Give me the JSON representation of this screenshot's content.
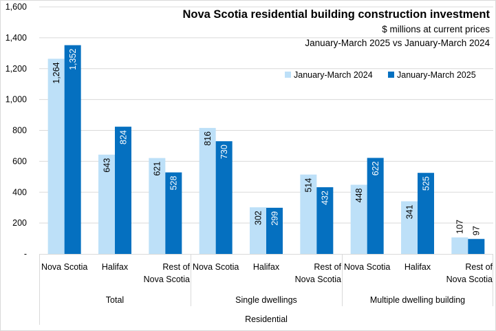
{
  "chart_data": {
    "type": "bar",
    "title": "Nova Scotia residential building construction investment",
    "subtitle": "$ millions at current prices",
    "subtitle2": "January-March 2025 vs January-March 2024",
    "xlabel": "",
    "ylabel": "",
    "ylim": [
      0,
      1600
    ],
    "yticks": [
      0,
      200,
      400,
      600,
      800,
      1000,
      1200,
      1400,
      1600
    ],
    "ytick_labels": [
      "-",
      "200",
      "400",
      "600",
      "800",
      "1,000",
      "1,200",
      "1,400",
      "1,600"
    ],
    "grid": true,
    "legend_position": "top-right",
    "categories": [
      [
        "Nova Scotia"
      ],
      [
        "Halifax"
      ],
      [
        "Rest of",
        "Nova Scotia"
      ],
      [
        "Nova Scotia"
      ],
      [
        "Halifax"
      ],
      [
        "Rest of",
        "Nova Scotia"
      ],
      [
        "Nova Scotia"
      ],
      [
        "Halifax"
      ],
      [
        "Rest of",
        "Nova Scotia"
      ]
    ],
    "groups": [
      "Total",
      "Single dwellings",
      "Multiple dwelling building"
    ],
    "supergroup": "Residential",
    "series": [
      {
        "name": "January-March 2024",
        "color": "#bde0f8",
        "label_color": "#000000",
        "values": [
          1264,
          643,
          621,
          816,
          302,
          514,
          448,
          341,
          107
        ],
        "labels": [
          "1,264",
          "643",
          "621",
          "816",
          "302",
          "514",
          "448",
          "341",
          "107"
        ]
      },
      {
        "name": "January-March 2025",
        "color": "#0570c0",
        "label_color": "#ffffff",
        "values": [
          1352,
          824,
          528,
          730,
          299,
          432,
          622,
          525,
          97
        ],
        "labels": [
          "1,352",
          "824",
          "528",
          "730",
          "299",
          "432",
          "622",
          "525",
          "97"
        ]
      }
    ]
  }
}
